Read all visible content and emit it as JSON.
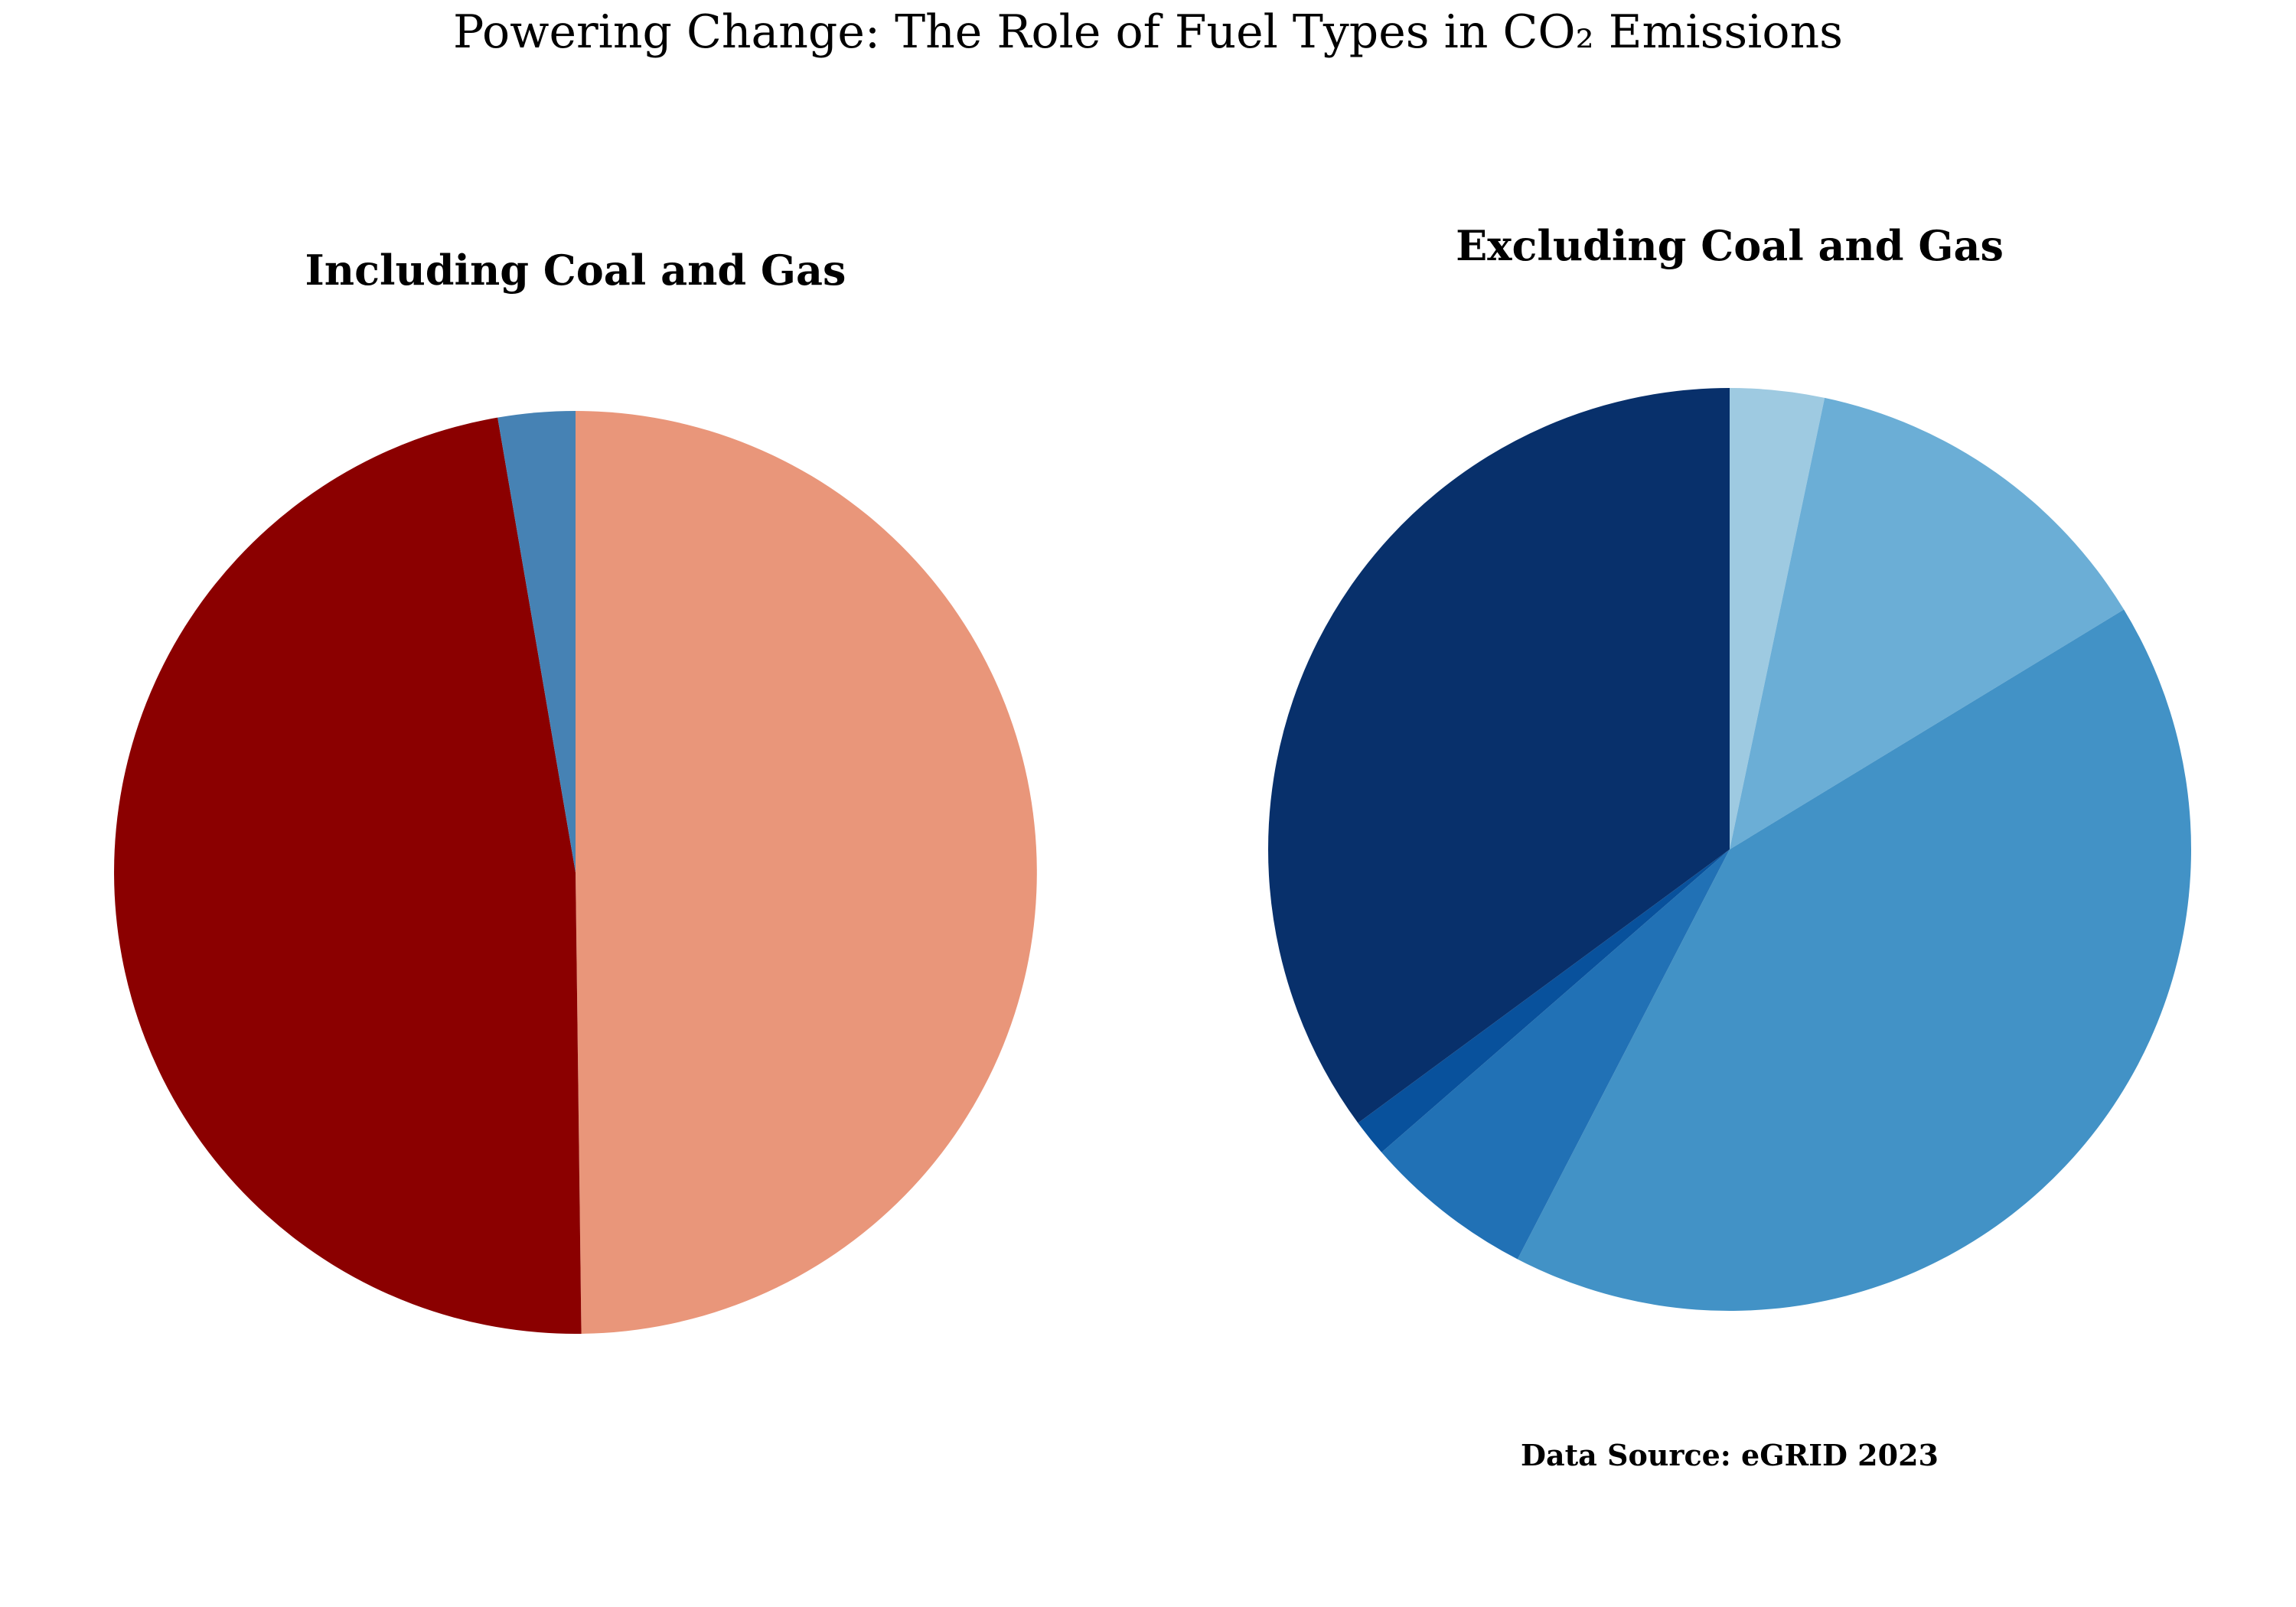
{
  "title": "Powering Change: The Role of Fuel Types in CO₂ Emissions",
  "source_note": "Data Source: eGRID 2023",
  "chart_data": [
    {
      "type": "pie",
      "title": "Including Coal and Gas",
      "start_angle": 90,
      "direction": "clockwise",
      "values": [
        49.8,
        47.5,
        2.7
      ],
      "colors": [
        "#e9967a",
        "#8b0000",
        "#4682b4"
      ]
    },
    {
      "type": "pie",
      "title": "Excluding Coal and Gas",
      "start_angle": 90,
      "direction": "clockwise",
      "values": [
        3.3,
        13.0,
        41.3,
        6.0,
        1.3,
        35.1
      ],
      "colors": [
        "#9ecae1",
        "#6baed6",
        "#4292c6",
        "#2171b5",
        "#08519c",
        "#08306b"
      ]
    }
  ]
}
